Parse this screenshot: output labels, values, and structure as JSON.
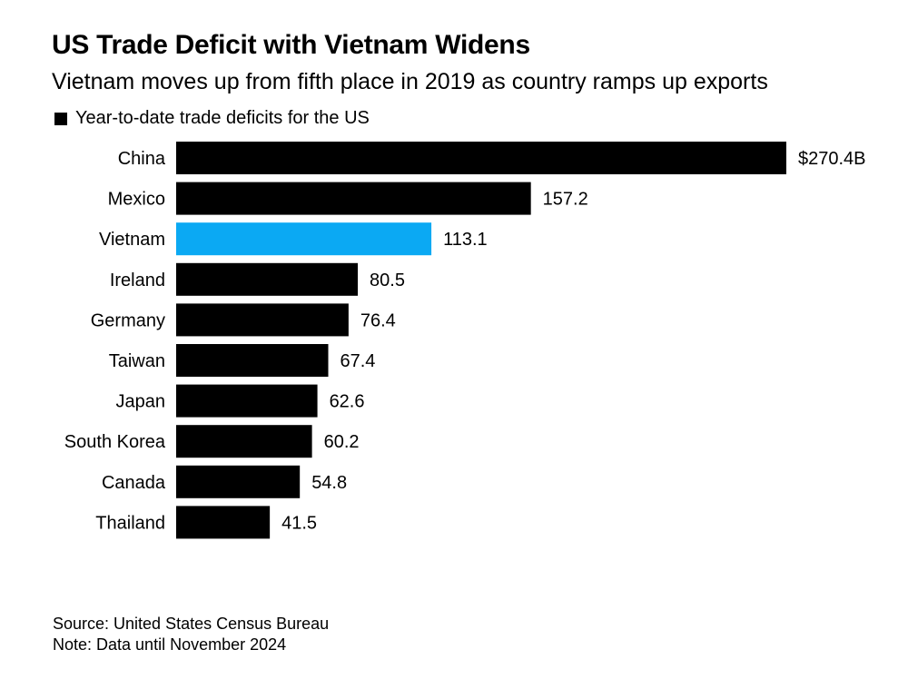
{
  "title": "US Trade Deficit with Vietnam Widens",
  "subtitle": "Vietnam moves up from fifth place in 2019 as country ramps up exports",
  "legend": {
    "label": "Year-to-date trade deficits for the US",
    "color": "#000000"
  },
  "source": "Source: United States Census Bureau",
  "note": "Note: Data until November 2024",
  "colors": {
    "default_bar": "#000000",
    "highlight_bar": "#0ba9f3"
  },
  "chart_data": {
    "type": "bar",
    "orientation": "horizontal",
    "title": "US Trade Deficit with Vietnam Widens",
    "subtitle": "Vietnam moves up from fifth place in 2019 as country ramps up exports",
    "categories": [
      "China",
      "Mexico",
      "Vietnam",
      "Ireland",
      "Germany",
      "Taiwan",
      "Japan",
      "South Korea",
      "Canada",
      "Thailand"
    ],
    "series": [
      {
        "name": "Year-to-date trade deficits for the US",
        "values": [
          270.4,
          157.2,
          113.1,
          80.5,
          76.4,
          67.4,
          62.6,
          60.2,
          54.8,
          41.5
        ]
      }
    ],
    "value_labels": [
      "$270.4B",
      "157.2",
      "113.1",
      "80.5",
      "76.4",
      "67.4",
      "62.6",
      "60.2",
      "54.8",
      "41.5"
    ],
    "highlight": "Vietnam",
    "xlim": [
      0,
      270.4
    ],
    "grid": false,
    "legend_position": "top-left"
  }
}
